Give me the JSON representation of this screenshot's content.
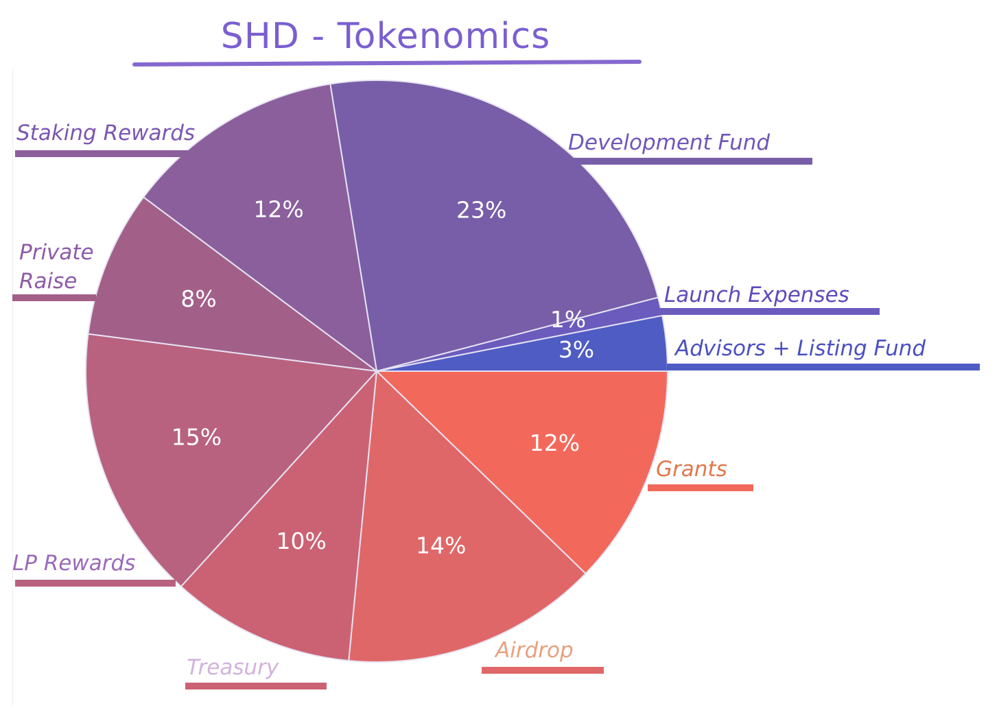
{
  "chart_data": {
    "type": "pie",
    "title": "SHD - Tokenomics",
    "slices": [
      {
        "label": "Advisors + Listing Fund",
        "value": 3,
        "display": "3%",
        "color": "#4f5cc4",
        "label_color": "#4a4fc0"
      },
      {
        "label": "Launch Expenses",
        "value": 1,
        "display": "1%",
        "color": "#6a5bbd",
        "label_color": "#5b4bbd"
      },
      {
        "label": "Development Fund",
        "value": 23,
        "display": "23%",
        "color": "#785ea8",
        "label_color": "#6e56b8"
      },
      {
        "label": "Staking Rewards",
        "value": 12,
        "display": "12%",
        "color": "#8b5f9c",
        "label_color": "#7a56b0"
      },
      {
        "label": "Private\nRaise",
        "value": 8,
        "display": "8%",
        "color": "#a26089",
        "label_color": "#8d5aa8"
      },
      {
        "label": "LP Rewards",
        "value": 15,
        "display": "15%",
        "color": "#b8627f",
        "label_color": "#9a6ab8"
      },
      {
        "label": "Treasury",
        "value": 10,
        "display": "10%",
        "color": "#cb6274",
        "label_color": "#d2b2dc"
      },
      {
        "label": "Airdrop",
        "value": 14,
        "display": "14%",
        "color": "#e06768",
        "label_color": "#e8a07e"
      },
      {
        "label": "Grants",
        "value": 12,
        "display": "12%",
        "color": "#f2695b",
        "label_color": "#e0784c"
      }
    ]
  },
  "colors": {
    "title": "#7a5fd0",
    "title_underline": "#8569cf",
    "slice_border": "#e6e3f3"
  }
}
